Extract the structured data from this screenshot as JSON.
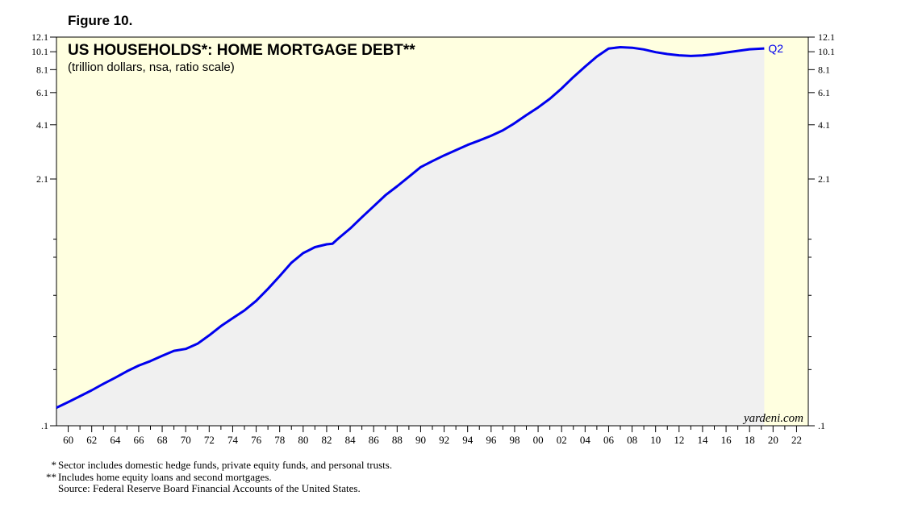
{
  "figure_label": "Figure 10.",
  "chart_data": {
    "type": "area",
    "title": "US HOUSEHOLDS*: HOME MORTGAGE DEBT**",
    "subtitle": "(trillion dollars, nsa, ratio scale)",
    "y_scale": "log",
    "ylim": [
      0.1,
      12.1
    ],
    "y_ticks": [
      {
        "value": 12.1,
        "label": "12.1"
      },
      {
        "value": 10.1,
        "label": "10.1"
      },
      {
        "value": 8.1,
        "label": "8.1"
      },
      {
        "value": 6.1,
        "label": "6.1"
      },
      {
        "value": 4.1,
        "label": "4.1"
      },
      {
        "value": 2.1,
        "label": "2.1"
      },
      {
        "value": 0.1,
        "label": ".1"
      }
    ],
    "y_minor_ticks": [
      1.0,
      0.8,
      0.5,
      0.3,
      0.2
    ],
    "xlim": [
      1959,
      2023
    ],
    "x_tick_labels": [
      "60",
      "62",
      "64",
      "66",
      "68",
      "70",
      "72",
      "74",
      "76",
      "78",
      "80",
      "82",
      "84",
      "86",
      "88",
      "90",
      "92",
      "94",
      "96",
      "98",
      "00",
      "02",
      "04",
      "06",
      "08",
      "10",
      "12",
      "14",
      "16",
      "18",
      "20",
      "22"
    ],
    "x_tick_years": [
      1960,
      1962,
      1964,
      1966,
      1968,
      1970,
      1972,
      1974,
      1976,
      1978,
      1980,
      1982,
      1984,
      1986,
      1988,
      1990,
      1992,
      1994,
      1996,
      1998,
      2000,
      2002,
      2004,
      2006,
      2008,
      2010,
      2012,
      2014,
      2016,
      2018,
      2020,
      2022
    ],
    "series": [
      {
        "name": "",
        "color": "#0000ee",
        "end_label": "Q2",
        "x": [
          1959.0,
          1960,
          1961,
          1962,
          1963,
          1964,
          1965,
          1966,
          1967,
          1968,
          1969,
          1970,
          1971,
          1972,
          1973,
          1974,
          1975,
          1976,
          1977,
          1978,
          1979,
          1980,
          1981,
          1982,
          1982.5,
          1983,
          1984,
          1985,
          1986,
          1987,
          1988,
          1989,
          1990,
          1991,
          1992,
          1993,
          1994,
          1995,
          1996,
          1997,
          1998,
          1999,
          2000,
          2001,
          2002,
          2003,
          2004,
          2005,
          2006,
          2007,
          2008,
          2009,
          2010,
          2011,
          2012,
          2013,
          2014,
          2015,
          2016,
          2017,
          2018,
          2019.25
        ],
        "y": [
          0.125,
          0.134,
          0.144,
          0.155,
          0.168,
          0.181,
          0.196,
          0.21,
          0.222,
          0.237,
          0.252,
          0.258,
          0.275,
          0.305,
          0.342,
          0.377,
          0.415,
          0.467,
          0.541,
          0.634,
          0.748,
          0.842,
          0.906,
          0.938,
          0.946,
          1.01,
          1.14,
          1.31,
          1.5,
          1.72,
          1.92,
          2.16,
          2.43,
          2.62,
          2.81,
          3.0,
          3.2,
          3.38,
          3.58,
          3.83,
          4.18,
          4.62,
          5.08,
          5.65,
          6.42,
          7.39,
          8.41,
          9.52,
          10.51,
          10.68,
          10.61,
          10.39,
          10.05,
          9.82,
          9.66,
          9.59,
          9.64,
          9.8,
          10.01,
          10.21,
          10.41,
          10.52
        ]
      }
    ],
    "forecast_shade_start": 2019.25,
    "colors": {
      "background": "#ffffe0",
      "fill": "#f0f0f0",
      "line": "#0000ee"
    },
    "source_mark": "yardeni.com"
  },
  "footnotes": [
    {
      "mark": "*",
      "text": "Sector includes domestic hedge funds, private equity funds, and personal trusts."
    },
    {
      "mark": "**",
      "text": "Includes home equity loans and second mortgages."
    },
    {
      "mark": "",
      "text": "Source: Federal Reserve Board Financial Accounts of the United States."
    }
  ]
}
